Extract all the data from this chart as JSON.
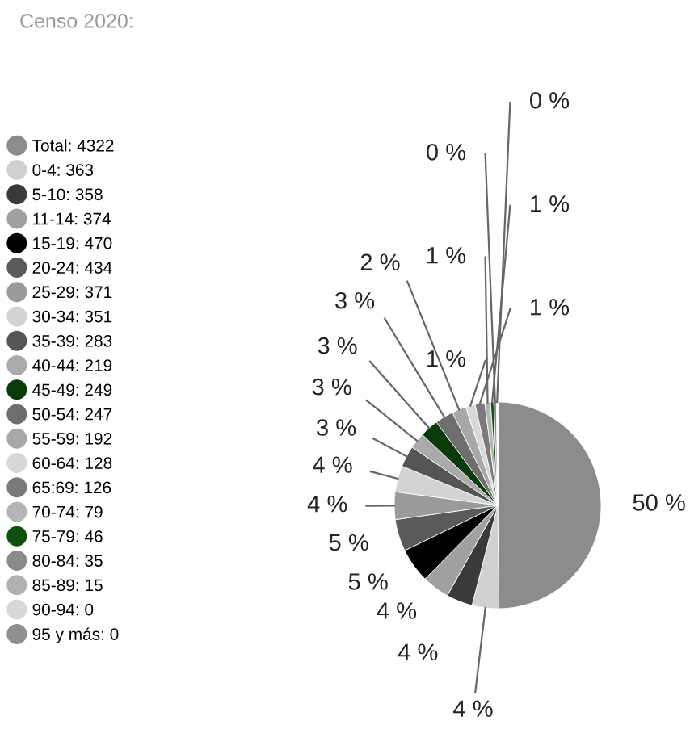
{
  "chart_data": {
    "type": "pie",
    "title": "Censo 2020:",
    "legend": "left",
    "categories": [
      "Total: 4322",
      "0-4: 363",
      "5-10: 358",
      "11-14: 374",
      "15-19: 470",
      "20-24: 434",
      "25-29: 371",
      "30-34: 351",
      "35-39: 283",
      "40-44: 219",
      "45-49: 249",
      "50-54: 247",
      "55-59: 192",
      "60-64: 128",
      "65:69: 126",
      "70-74: 79",
      "75-79: 46",
      "80-84: 35",
      "85-89: 15",
      "90-94: 0",
      "95 y más: 0"
    ],
    "values": [
      49.8,
      4.2,
      4.1,
      4.3,
      5.4,
      5.0,
      4.3,
      4.1,
      3.3,
      2.5,
      2.9,
      2.9,
      2.2,
      1.5,
      1.5,
      0.9,
      0.5,
      0.4,
      0.2,
      0,
      0
    ],
    "value_labels": [
      "50 %",
      "4 %",
      "4 %",
      "4 %",
      "5 %",
      "5 %",
      "4 %",
      "4 %",
      "3 %",
      "3 %",
      "3 %",
      "3 %",
      "2 %",
      "1 %",
      "1 %",
      "1 %",
      "1 %",
      "0 %",
      "0 %",
      null,
      null
    ],
    "colors": [
      "#8c8c8c",
      "#d0d0d0",
      "#3a3a3a",
      "#a0a0a0",
      "#000000",
      "#5a5a5a",
      "#9a9a9a",
      "#d3d3d3",
      "#555555",
      "#aaaaaa",
      "#0a3a0a",
      "#6e6e6e",
      "#a8a8a8",
      "#d8d8d8",
      "#7a7a7a",
      "#b5b5b5",
      "#0f4f0f",
      "#8a8a8a",
      "#b0b0b0",
      "#d8d8d8",
      "#8f8f8f"
    ]
  }
}
